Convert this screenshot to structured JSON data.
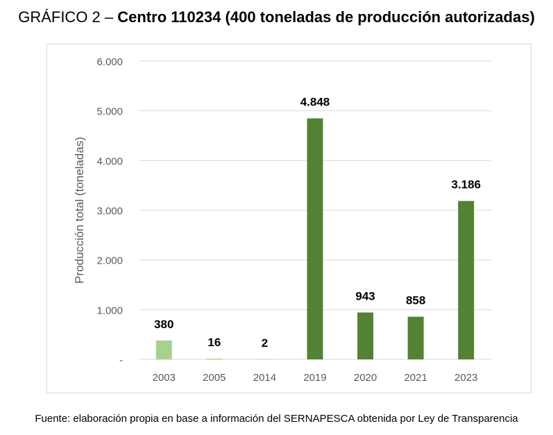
{
  "title": {
    "prefix": "GRÁFICO 2 – ",
    "main": "Centro 110234 (400 toneladas de producción autorizadas)"
  },
  "footer": "Fuente: elaboración propia en base a información del SERNAPESCA obtenida por Ley de Transparencia",
  "chart_data": {
    "type": "bar",
    "categories": [
      "2003",
      "2005",
      "2014",
      "2019",
      "2020",
      "2021",
      "2023"
    ],
    "values": [
      380,
      16,
      2,
      4848,
      943,
      858,
      3186
    ],
    "value_labels": [
      "380",
      "16",
      "2",
      "4.848",
      "943",
      "858",
      "3.186"
    ],
    "bar_colors": [
      "#a9d18e",
      "#a9d18e",
      "#a9d18e",
      "#548235",
      "#548235",
      "#548235",
      "#548235"
    ],
    "ylabel": "Producción total (toneladas)",
    "xlabel": "",
    "ylim": [
      0,
      6000
    ],
    "yticks": [
      0,
      1000,
      2000,
      3000,
      4000,
      5000,
      6000
    ],
    "ytick_labels": [
      "-",
      "1.000",
      "2.000",
      "3.000",
      "4.000",
      "5.000",
      "6.000"
    ],
    "grid": true,
    "grid_color": "#d9d9d9",
    "legend": "none"
  }
}
